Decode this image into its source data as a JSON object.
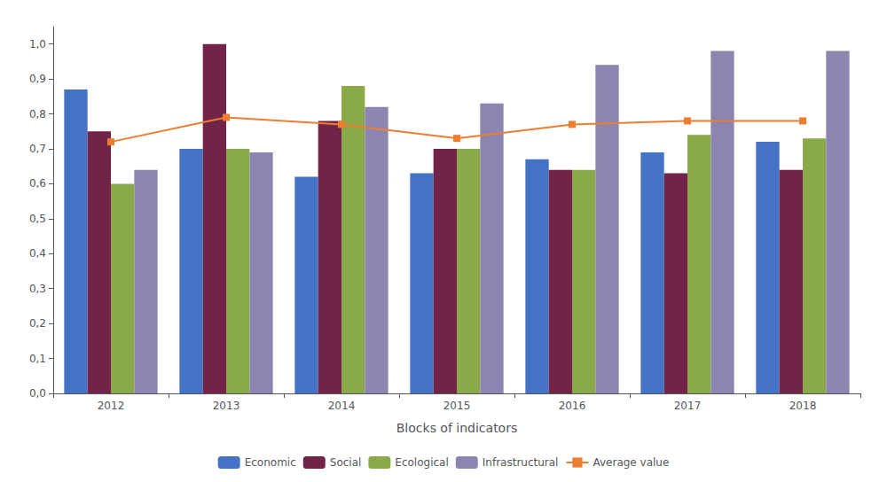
{
  "chart_data": {
    "type": "bar",
    "xlabel": "Blocks of indicators",
    "categories": [
      "2012",
      "2013",
      "2014",
      "2015",
      "2016",
      "2017",
      "2018"
    ],
    "series": [
      {
        "name": "Economic",
        "color": "#4472C4",
        "values": [
          0.87,
          0.7,
          0.62,
          0.63,
          0.67,
          0.69,
          0.72
        ]
      },
      {
        "name": "Social",
        "color": "#722348",
        "values": [
          0.75,
          1.0,
          0.78,
          0.7,
          0.64,
          0.63,
          0.64
        ]
      },
      {
        "name": "Ecological",
        "color": "#8AAA4A",
        "values": [
          0.6,
          0.7,
          0.88,
          0.7,
          0.64,
          0.74,
          0.73
        ]
      },
      {
        "name": "Infrastructural",
        "color": "#8B85B0",
        "values": [
          0.64,
          0.69,
          0.82,
          0.83,
          0.94,
          0.98,
          0.98
        ]
      },
      {
        "name": "Average value",
        "type": "line",
        "marker": "square",
        "color": "#ED7D31",
        "values": [
          0.72,
          0.79,
          0.77,
          0.73,
          0.77,
          0.78,
          0.78
        ]
      }
    ],
    "ylim": [
      0,
      1.05
    ],
    "yticks": [
      {
        "value": 0.0,
        "label": "0,0"
      },
      {
        "value": 0.1,
        "label": "0,1"
      },
      {
        "value": 0.2,
        "label": "0,2"
      },
      {
        "value": 0.3,
        "label": "0,3"
      },
      {
        "value": 0.4,
        "label": "0,4"
      },
      {
        "value": 0.5,
        "label": "0,5"
      },
      {
        "value": 0.6,
        "label": "0,6"
      },
      {
        "value": 0.7,
        "label": "0,7"
      },
      {
        "value": 0.8,
        "label": "0,8"
      },
      {
        "value": 0.9,
        "label": "0,9"
      },
      {
        "value": 1.0,
        "label": "1,0"
      }
    ],
    "grid": false,
    "legend": "bottom"
  }
}
